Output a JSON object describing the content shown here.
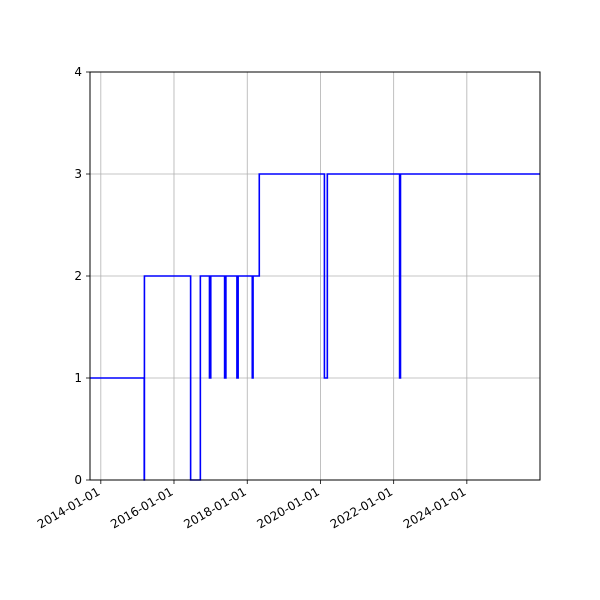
{
  "chart_data": {
    "type": "line",
    "step": true,
    "title": "",
    "xlabel": "",
    "ylabel": "",
    "grid": true,
    "line_color": "#0000ff",
    "xlim": [
      "2013-09-15",
      "2025-12-31"
    ],
    "ylim": [
      0,
      4
    ],
    "x_ticks": [
      "2014-01-01",
      "2016-01-01",
      "2018-01-01",
      "2020-01-01",
      "2022-01-01",
      "2024-01-01"
    ],
    "y_ticks": [
      "0",
      "1",
      "2",
      "3",
      "4"
    ],
    "series": [
      {
        "x": [
          "2013-09-15",
          "2015-03-10",
          "2015-03-12",
          "2016-06-15",
          "2016-09-20",
          "2016-12-20",
          "2017-01-02",
          "2017-05-20",
          "2017-06-02",
          "2017-09-20",
          "2017-10-02",
          "2018-02-20",
          "2018-02-28",
          "2018-04-01",
          "2018-05-01",
          "2020-02-10",
          "2020-03-10",
          "2022-03-01",
          "2022-03-10",
          "2025-12-31"
        ],
        "y": [
          1,
          0,
          2,
          0,
          2,
          1,
          2,
          1,
          2,
          1,
          2,
          1,
          2,
          2,
          3,
          1,
          3,
          1,
          3,
          3
        ]
      }
    ]
  }
}
